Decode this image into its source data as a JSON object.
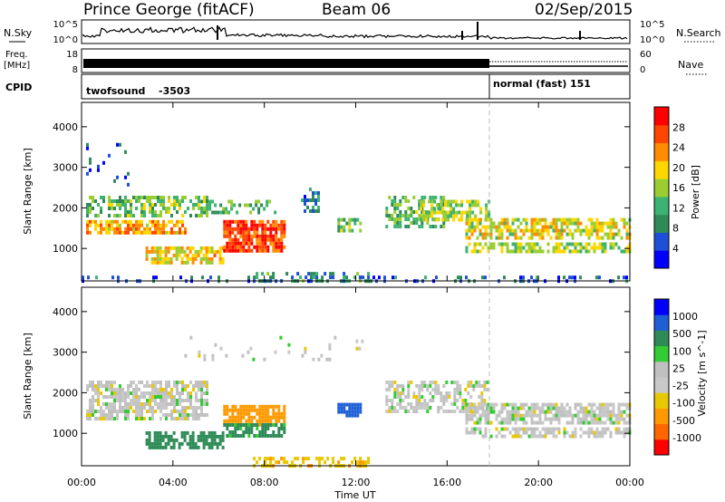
{
  "header": {
    "station": "Prince George (fitACF)",
    "beam": "Beam 06",
    "date": "02/Sep/2015"
  },
  "noise_panel": {
    "left_label": "N.Sky",
    "right_label": "N.Search",
    "left_ticks": [
      "10^5",
      "10^0"
    ],
    "right_ticks": [
      "10^5",
      "10^0"
    ]
  },
  "freq_panel": {
    "left_label_1": "Freq.",
    "left_label_2": "[MHz]",
    "left_ticks": [
      "18",
      "8"
    ],
    "right_label": "Nave",
    "right_ticks": [
      "60",
      "0"
    ]
  },
  "cpid_panel": {
    "label": "CPID",
    "programs": [
      {
        "name": "twofsound",
        "id": "-3503",
        "start_hour": 0
      },
      {
        "name": "normal (fast)",
        "id": "151",
        "start_hour": 18
      }
    ]
  },
  "colors": {
    "power": [
      "#0000ff",
      "#1f4fd6",
      "#2e8b57",
      "#3cb371",
      "#9acd32",
      "#ffd700",
      "#ff8c00",
      "#ff4500",
      "#ff0000"
    ],
    "velocity": [
      "#ff0000",
      "#ff6600",
      "#ff9900",
      "#e8c800",
      "#c8c8c8",
      "#c0c0c0",
      "#33cc33",
      "#2e8b57",
      "#1f5fd6",
      "#0000ff"
    ],
    "ground": "#b0b0b0"
  },
  "chart_data": [
    {
      "type": "heatmap",
      "title": "Power",
      "ylabel": "Slant Range [km]",
      "xlabel": "",
      "x_ticks": [
        "00:00",
        "04:00",
        "08:00",
        "12:00",
        "16:00",
        "20:00",
        "00:00"
      ],
      "y_ticks": [
        "1000",
        "2000",
        "3000",
        "4000"
      ],
      "ylim": [
        200,
        4600
      ],
      "xlim_hours": [
        0,
        24
      ],
      "colorbar": {
        "label": "Power [dB]",
        "ticks": [
          "4",
          "8",
          "12",
          "16",
          "20",
          "24",
          "28"
        ],
        "range": [
          0,
          32
        ]
      },
      "regions": [
        {
          "x": [
            0.2,
            4.5
          ],
          "y": [
            1350,
            1700
          ],
          "value": 22,
          "density": 0.75
        },
        {
          "x": [
            0.2,
            5.5
          ],
          "y": [
            1850,
            2300
          ],
          "value": 14,
          "density": 0.55
        },
        {
          "x": [
            2.8,
            6.2
          ],
          "y": [
            650,
            1050
          ],
          "value": 20,
          "density": 0.7
        },
        {
          "x": [
            6.2,
            8.9
          ],
          "y": [
            950,
            1700
          ],
          "value": 28,
          "density": 0.85
        },
        {
          "x": [
            5.2,
            8.5
          ],
          "y": [
            1900,
            2200
          ],
          "value": 12,
          "density": 0.4
        },
        {
          "x": [
            9.6,
            10.4
          ],
          "y": [
            1900,
            2500
          ],
          "value": 8,
          "density": 0.35
        },
        {
          "x": [
            11.2,
            12.2
          ],
          "y": [
            1450,
            1750
          ],
          "value": 14,
          "density": 0.6
        },
        {
          "x": [
            13.3,
            15.8
          ],
          "y": [
            1500,
            2300
          ],
          "value": 13,
          "density": 0.55
        },
        {
          "x": [
            14.8,
            17.8
          ],
          "y": [
            1700,
            2200
          ],
          "value": 16,
          "density": 0.6
        },
        {
          "x": [
            16.8,
            24.0
          ],
          "y": [
            1250,
            1750
          ],
          "value": 18,
          "density": 0.7
        },
        {
          "x": [
            16.8,
            24.0
          ],
          "y": [
            900,
            1150
          ],
          "value": 16,
          "density": 0.6
        },
        {
          "x": [
            0.2,
            2.0
          ],
          "y": [
            2600,
            3600
          ],
          "value": 6,
          "density": 0.1
        },
        {
          "x": [
            7.5,
            12.5
          ],
          "y": [
            220,
            420
          ],
          "value": 10,
          "density": 0.45
        },
        {
          "x": [
            0.0,
            24.0
          ],
          "y": [
            220,
            330
          ],
          "value": 6,
          "density": 0.2
        }
      ]
    },
    {
      "type": "heatmap",
      "title": "Velocity",
      "ylabel": "Slant Range [km]",
      "xlabel": "Time UT",
      "x_ticks": [
        "00:00",
        "04:00",
        "08:00",
        "12:00",
        "16:00",
        "20:00",
        "00:00"
      ],
      "y_ticks": [
        "1000",
        "2000",
        "3000",
        "4000"
      ],
      "ylim": [
        200,
        4600
      ],
      "xlim_hours": [
        0,
        24
      ],
      "colorbar": {
        "label": "Velocity [m s^-1]",
        "ticks": [
          "1000",
          "500",
          "100",
          "25",
          "-25",
          "-100",
          "-500",
          "-1000"
        ],
        "range": [
          -1200,
          1200
        ]
      },
      "regions": [
        {
          "x": [
            0.2,
            5.5
          ],
          "y": [
            1350,
            2300
          ],
          "value": 0,
          "density": 0.7
        },
        {
          "x": [
            2.8,
            6.2
          ],
          "y": [
            650,
            1050
          ],
          "value": 150,
          "density": 0.7
        },
        {
          "x": [
            6.2,
            8.9
          ],
          "y": [
            1250,
            1700
          ],
          "value": -300,
          "density": 0.8
        },
        {
          "x": [
            6.2,
            8.9
          ],
          "y": [
            950,
            1250
          ],
          "value": 120,
          "density": 0.7
        },
        {
          "x": [
            11.2,
            12.2
          ],
          "y": [
            1450,
            1750
          ],
          "value": 800,
          "density": 0.7
        },
        {
          "x": [
            13.3,
            17.8
          ],
          "y": [
            1500,
            2300
          ],
          "value": 0,
          "density": 0.55
        },
        {
          "x": [
            16.8,
            24.0
          ],
          "y": [
            1250,
            1750
          ],
          "value": 0,
          "density": 0.7
        },
        {
          "x": [
            16.8,
            24.0
          ],
          "y": [
            900,
            1150
          ],
          "value": 0,
          "density": 0.6
        },
        {
          "x": [
            7.5,
            12.5
          ],
          "y": [
            220,
            420
          ],
          "value": -80,
          "density": 0.45
        },
        {
          "x": [
            4.5,
            12.5
          ],
          "y": [
            2800,
            3400
          ],
          "value": 0,
          "density": 0.1
        }
      ]
    }
  ]
}
